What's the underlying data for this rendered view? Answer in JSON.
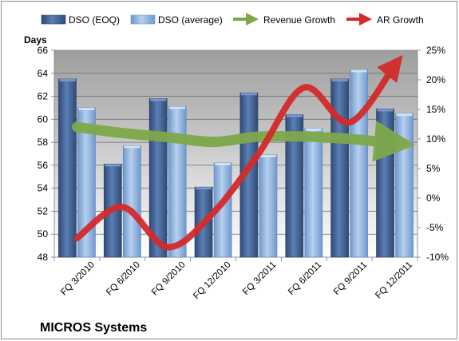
{
  "chart_data": {
    "type": "bar",
    "company_label": "MICROS Systems",
    "left_axis_title": "Days",
    "ylim_left": [
      48,
      66
    ],
    "left_ticks": [
      "48",
      "50",
      "52",
      "54",
      "56",
      "58",
      "60",
      "62",
      "64",
      "66"
    ],
    "ylim_right": [
      -0.1,
      0.25
    ],
    "right_ticks": [
      "-10%",
      "-5%",
      "0%",
      "5%",
      "10%",
      "15%",
      "20%",
      "25%"
    ],
    "categories": [
      "FQ 3/2010",
      "FQ 6/2010",
      "FQ 9/2010",
      "FQ 12/2010",
      "FQ 3/2011",
      "FQ 6/2011",
      "FQ 9/2011",
      "FQ 12/2011"
    ],
    "grid": true,
    "legend_position": "top",
    "series": [
      {
        "name": "DSO (EOQ)",
        "type": "bar",
        "axis": "left",
        "color": "#3f5f91",
        "values": [
          63.5,
          56.1,
          61.8,
          54.1,
          62.3,
          60.4,
          63.5,
          60.9
        ]
      },
      {
        "name": "DSO (average)",
        "type": "bar",
        "axis": "left",
        "color": "#8fb3dd",
        "values": [
          61.0,
          57.7,
          61.1,
          56.2,
          56.9,
          59.2,
          64.3,
          60.5
        ]
      },
      {
        "name": "Revenue Growth",
        "type": "line",
        "axis": "right",
        "color": "#7ea84a",
        "values": [
          0.12,
          0.11,
          0.103,
          0.095,
          0.104,
          0.104,
          0.1,
          0.093
        ]
      },
      {
        "name": "AR Growth",
        "type": "line",
        "axis": "right",
        "color": "#d42a2a",
        "values": [
          -0.068,
          -0.015,
          -0.083,
          -0.025,
          0.075,
          0.187,
          0.128,
          0.225
        ]
      }
    ]
  }
}
